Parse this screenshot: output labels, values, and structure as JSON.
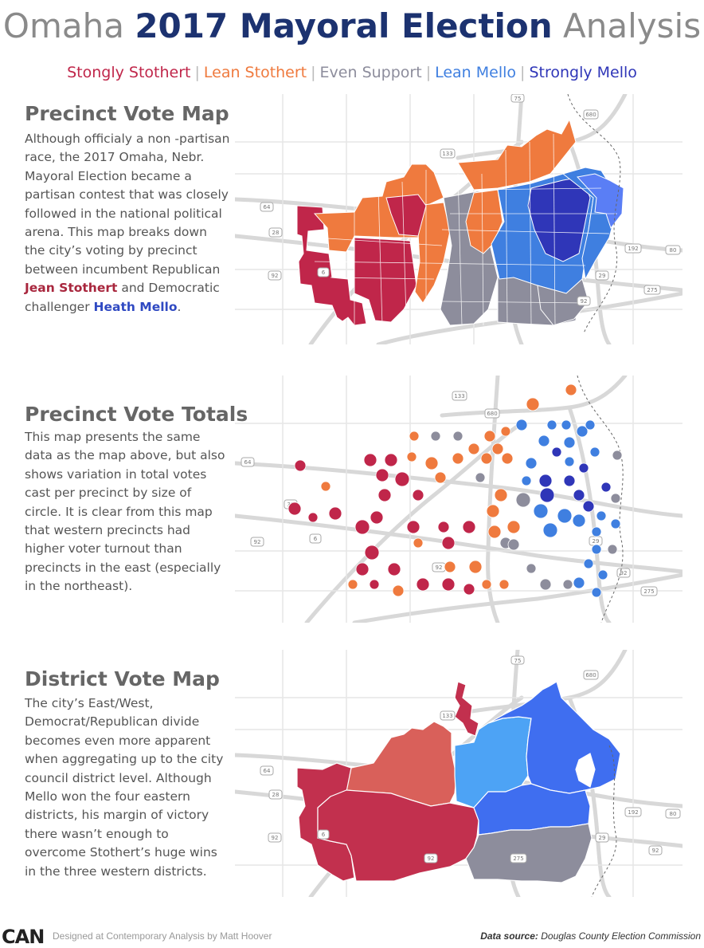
{
  "title": {
    "part1": "Omaha ",
    "part2": "2017 Mayoral Election",
    "part3": " Analysis"
  },
  "legend": [
    {
      "label": "Stongly Stothert",
      "color": "#c0264a"
    },
    {
      "label": "Lean Stothert",
      "color": "#ef7a3e"
    },
    {
      "label": "Even Support",
      "color": "#8d8d9c"
    },
    {
      "label": "Lean Mello",
      "color": "#3f7fe0"
    },
    {
      "label": "Strongly Mello",
      "color": "#2f36b8"
    }
  ],
  "legend_separator": "|",
  "sections": {
    "precinct_map": {
      "title": "Precinct Vote Map",
      "text_before": "Although officialy a non -partisan race, the 2017 Omaha, Nebr. Mayoral Election became a partisan contest that was closely followed in the national political arena. This map breaks down the city’s voting by precinct between incumbent Republican ",
      "name_stothert": "Jean Stothert",
      "text_middle": " and Democratic challenger ",
      "name_mello": "Heath Mello",
      "text_after": "."
    },
    "precinct_totals": {
      "title": "Precinct Vote Totals",
      "text": "This map presents the same data as the map above, but also shows variation in total votes cast per precinct by size of circle. It is clear from this map that western precincts had higher voter turnout than precincts in the east (especially in the northeast)."
    },
    "district_map": {
      "title": "District Vote Map",
      "text": "The city’s East/West, Democrat/Republican divide becomes even more apparent when aggregating up to the city council district level. Although Mello won the four eastern districts, his margin of victory there wasn’t enough to overcome Stothert’s huge wins in the three western districts."
    }
  },
  "road_labels": {
    "map1": [
      "75",
      "133",
      "680",
      "64",
      "28",
      "6",
      "92",
      "192",
      "80",
      "29",
      "275",
      "92"
    ],
    "map2": [
      "133",
      "680",
      "64",
      "31",
      "6",
      "92",
      "92",
      "29",
      "92",
      "275"
    ],
    "map3": [
      "75",
      "133",
      "680",
      "64",
      "28",
      "6",
      "92",
      "192",
      "80",
      "29",
      "275",
      "92",
      "92"
    ]
  },
  "colors": {
    "strong_stothert": "#c0264a",
    "lean_stothert": "#ef7a3e",
    "even": "#8d8d9c",
    "lean_mello": "#3f7fe0",
    "strong_mello": "#2f36b8",
    "district_red": "#c2304e",
    "district_orange": "#d9605a",
    "district_lightblue": "#4da3f5",
    "district_blue": "#3f6ef0",
    "district_gray": "#8d8d9c"
  },
  "footer": {
    "logo": "CAN",
    "credit": "Designed at Contemporary Analysis by Matt Hoover",
    "source_label": "Data source:",
    "source_value": " Douglas County Election Commission"
  }
}
